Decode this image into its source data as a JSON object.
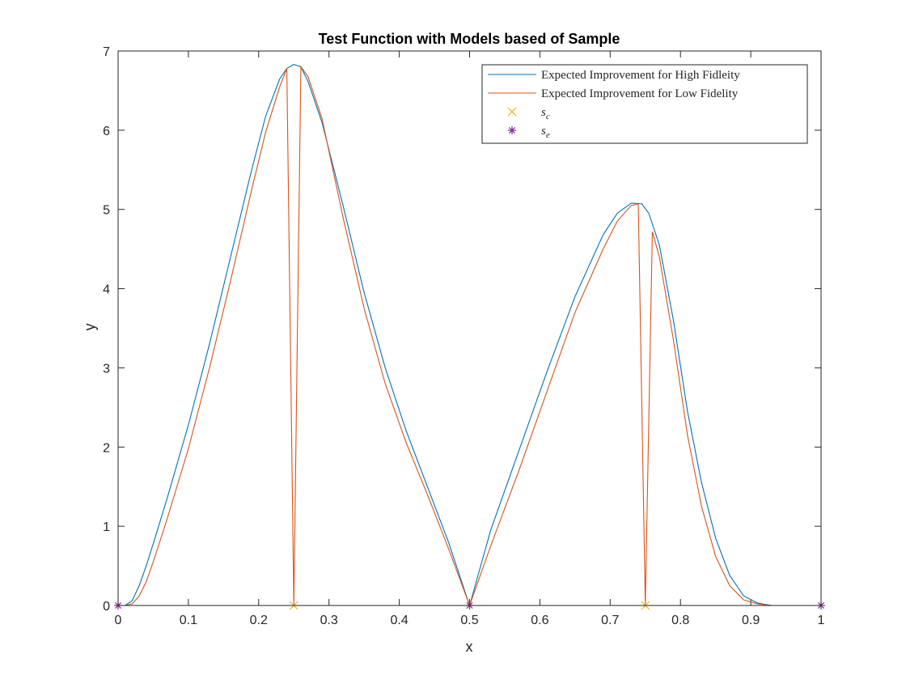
{
  "chart_data": {
    "type": "line",
    "title": "Test Function with Models based of Sample",
    "xlabel": "x",
    "ylabel": "y",
    "xlim": [
      0,
      1
    ],
    "ylim": [
      0,
      7
    ],
    "grid": false,
    "legend_position": "top-right",
    "x_ticks": [
      "0",
      "0.1",
      "0.2",
      "0.3",
      "0.4",
      "0.5",
      "0.6",
      "0.7",
      "0.8",
      "0.9",
      "1"
    ],
    "y_ticks": [
      "0",
      "1",
      "2",
      "3",
      "4",
      "5",
      "6",
      "7"
    ],
    "series": [
      {
        "name": "Expected Improvement for High Fidleity",
        "kind": "line",
        "color": "#0072BD",
        "points": [
          [
            0,
            0
          ],
          [
            0.01,
            0.0
          ],
          [
            0.02,
            0.06
          ],
          [
            0.03,
            0.25
          ],
          [
            0.04,
            0.5
          ],
          [
            0.05,
            0.78
          ],
          [
            0.07,
            1.36
          ],
          [
            0.1,
            2.28
          ],
          [
            0.13,
            3.3
          ],
          [
            0.16,
            4.4
          ],
          [
            0.19,
            5.5
          ],
          [
            0.21,
            6.18
          ],
          [
            0.23,
            6.65
          ],
          [
            0.24,
            6.78
          ],
          [
            0.25,
            6.83
          ],
          [
            0.26,
            6.8
          ],
          [
            0.27,
            6.62
          ],
          [
            0.29,
            6.1
          ],
          [
            0.32,
            5.05
          ],
          [
            0.35,
            3.95
          ],
          [
            0.38,
            3.0
          ],
          [
            0.41,
            2.2
          ],
          [
            0.44,
            1.5
          ],
          [
            0.47,
            0.8
          ],
          [
            0.5,
            0.0
          ],
          [
            0.53,
            0.95
          ],
          [
            0.57,
            1.95
          ],
          [
            0.61,
            2.95
          ],
          [
            0.65,
            3.9
          ],
          [
            0.69,
            4.68
          ],
          [
            0.71,
            4.95
          ],
          [
            0.73,
            5.08
          ],
          [
            0.745,
            5.07
          ],
          [
            0.755,
            4.95
          ],
          [
            0.77,
            4.55
          ],
          [
            0.79,
            3.6
          ],
          [
            0.81,
            2.45
          ],
          [
            0.83,
            1.55
          ],
          [
            0.85,
            0.85
          ],
          [
            0.87,
            0.38
          ],
          [
            0.89,
            0.12
          ],
          [
            0.91,
            0.03
          ],
          [
            0.93,
            0.0
          ],
          [
            0.96,
            0.0
          ],
          [
            1.0,
            0.0
          ]
        ]
      },
      {
        "name": "Expected Improvement for Low Fidelity",
        "kind": "line",
        "color": "#D95319",
        "points": [
          [
            0,
            0
          ],
          [
            0.01,
            0.0
          ],
          [
            0.02,
            0.02
          ],
          [
            0.03,
            0.12
          ],
          [
            0.04,
            0.3
          ],
          [
            0.05,
            0.55
          ],
          [
            0.07,
            1.1
          ],
          [
            0.1,
            1.98
          ],
          [
            0.13,
            3.0
          ],
          [
            0.16,
            4.1
          ],
          [
            0.19,
            5.25
          ],
          [
            0.21,
            5.98
          ],
          [
            0.23,
            6.55
          ],
          [
            0.24,
            6.78
          ],
          [
            0.25,
            0.0
          ],
          [
            0.26,
            6.8
          ],
          [
            0.27,
            6.68
          ],
          [
            0.29,
            6.15
          ],
          [
            0.32,
            4.9
          ],
          [
            0.35,
            3.75
          ],
          [
            0.38,
            2.8
          ],
          [
            0.41,
            2.05
          ],
          [
            0.44,
            1.4
          ],
          [
            0.47,
            0.72
          ],
          [
            0.5,
            0.0
          ],
          [
            0.53,
            0.75
          ],
          [
            0.57,
            1.7
          ],
          [
            0.61,
            2.7
          ],
          [
            0.65,
            3.7
          ],
          [
            0.69,
            4.5
          ],
          [
            0.71,
            4.85
          ],
          [
            0.73,
            5.05
          ],
          [
            0.74,
            5.07
          ],
          [
            0.75,
            0.0
          ],
          [
            0.76,
            4.72
          ],
          [
            0.77,
            4.4
          ],
          [
            0.79,
            3.35
          ],
          [
            0.81,
            2.15
          ],
          [
            0.83,
            1.25
          ],
          [
            0.85,
            0.62
          ],
          [
            0.87,
            0.25
          ],
          [
            0.89,
            0.07
          ],
          [
            0.91,
            0.02
          ],
          [
            0.93,
            0.0
          ],
          [
            0.96,
            0.0
          ],
          [
            1.0,
            0.0
          ]
        ]
      },
      {
        "name": "s_c",
        "kind": "marker",
        "marker": "x",
        "color": "#EDB120",
        "points": [
          [
            0.25,
            0
          ],
          [
            0.75,
            0
          ]
        ]
      },
      {
        "name": "s_e",
        "kind": "marker",
        "marker": "*",
        "color": "#7E2F8E",
        "points": [
          [
            0,
            0
          ],
          [
            0.5,
            0
          ],
          [
            1,
            0
          ]
        ]
      }
    ]
  }
}
